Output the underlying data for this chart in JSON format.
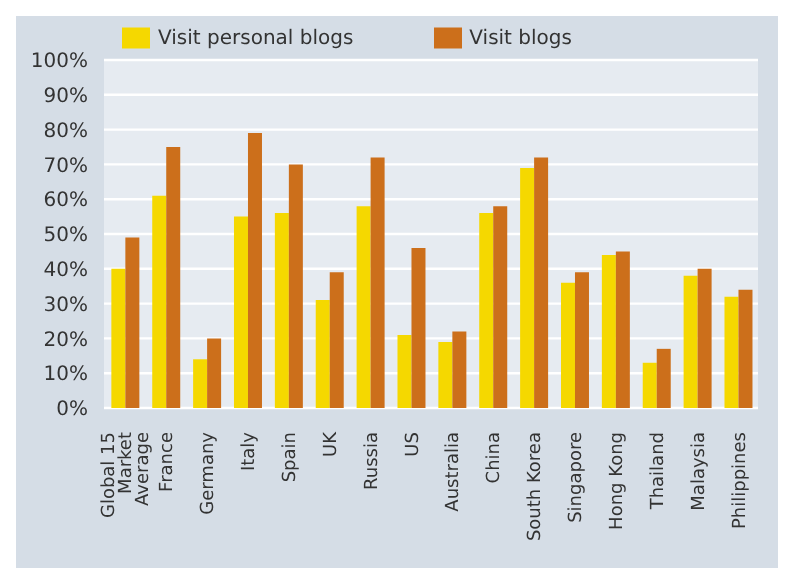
{
  "chart_data": {
    "type": "bar",
    "categories": [
      "Global 15 Market Average",
      "France",
      "Germany",
      "Italy",
      "Spain",
      "UK",
      "Russia",
      "US",
      "Australia",
      "China",
      "South Korea",
      "Singapore",
      "Hong Kong",
      "Thailand",
      "Malaysia",
      "Philippines"
    ],
    "series": [
      {
        "name": "Visit personal blogs",
        "color": "#f5d800",
        "values": [
          40,
          61,
          14,
          55,
          56,
          31,
          58,
          21,
          19,
          56,
          69,
          36,
          44,
          13,
          38,
          32
        ]
      },
      {
        "name": "Visit blogs",
        "color": "#cc6f1b",
        "values": [
          49,
          75,
          20,
          79,
          70,
          39,
          72,
          46,
          22,
          58,
          72,
          39,
          45,
          17,
          40,
          34
        ]
      }
    ],
    "ylim": [
      0,
      100
    ],
    "yticks": [
      {
        "value": 0,
        "label": "0%"
      },
      {
        "value": 10,
        "label": "10%"
      },
      {
        "value": 20,
        "label": "20%"
      },
      {
        "value": 30,
        "label": "30%"
      },
      {
        "value": 40,
        "label": "40%"
      },
      {
        "value": 50,
        "label": "50%"
      },
      {
        "value": 60,
        "label": "60%"
      },
      {
        "value": 70,
        "label": "70%"
      },
      {
        "value": 80,
        "label": "80%"
      },
      {
        "value": 90,
        "label": "90%"
      },
      {
        "value": 100,
        "label": "100%"
      }
    ],
    "grid": "y",
    "legend": "top"
  }
}
